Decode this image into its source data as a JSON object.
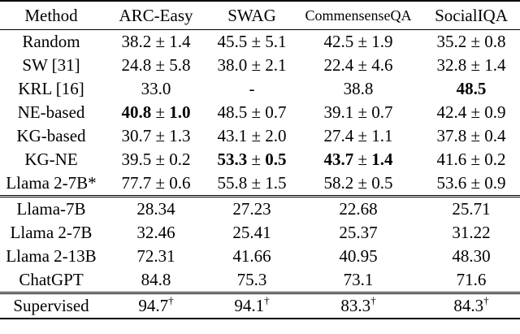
{
  "headers": [
    "Method",
    "ARC-Easy",
    "SWAG",
    "CommensenseQA",
    "SocialIQA"
  ],
  "group1": [
    {
      "method": "Random",
      "cells": [
        {
          "val": "38.2",
          "err": "1.4"
        },
        {
          "val": "45.5",
          "err": "5.1"
        },
        {
          "val": "42.5",
          "err": "1.9"
        },
        {
          "val": "35.2",
          "err": "0.8"
        }
      ]
    },
    {
      "method": "SW [31]",
      "cells": [
        {
          "val": "24.8",
          "err": "5.8"
        },
        {
          "val": "38.0",
          "err": "2.1"
        },
        {
          "val": "22.4",
          "err": "4.6"
        },
        {
          "val": "32.8",
          "err": "1.4"
        }
      ]
    },
    {
      "method": "KRL [16]",
      "cells": [
        {
          "val": "33.0",
          "err": ""
        },
        {
          "val": "-",
          "err": ""
        },
        {
          "val": "38.8",
          "err": ""
        },
        {
          "val": "48.5",
          "err": "",
          "bold": true
        }
      ]
    },
    {
      "method": "NE-based",
      "cells": [
        {
          "val": "40.8",
          "err": "1.0",
          "bold": true
        },
        {
          "val": "48.5",
          "err": "0.7"
        },
        {
          "val": "39.1",
          "err": "0.7"
        },
        {
          "val": "42.4",
          "err": "0.9"
        }
      ]
    },
    {
      "method": "KG-based",
      "cells": [
        {
          "val": "30.7",
          "err": "1.3"
        },
        {
          "val": "43.1",
          "err": "2.0"
        },
        {
          "val": "27.4",
          "err": "1.1"
        },
        {
          "val": "37.8",
          "err": "0.4"
        }
      ]
    },
    {
      "method": "KG-NE",
      "cells": [
        {
          "val": "39.5",
          "err": "0.2"
        },
        {
          "val": "53.3",
          "err": "0.5",
          "bold": true
        },
        {
          "val": "43.7",
          "err": "1.4",
          "bold": true
        },
        {
          "val": "41.6",
          "err": "0.2"
        }
      ]
    },
    {
      "method": "Llama 2-7B*",
      "cells": [
        {
          "val": "77.7",
          "err": "0.6"
        },
        {
          "val": "55.8",
          "err": "1.5"
        },
        {
          "val": "58.2",
          "err": "0.5"
        },
        {
          "val": "53.6",
          "err": "0.9"
        }
      ]
    }
  ],
  "group2": [
    {
      "method": "Llama-7B",
      "cells": [
        "28.34",
        "27.23",
        "22.68",
        "25.71"
      ]
    },
    {
      "method": "Llama 2-7B",
      "cells": [
        "32.46",
        "25.41",
        "25.37",
        "31.22"
      ]
    },
    {
      "method": "Llama 2-13B",
      "cells": [
        "72.31",
        "41.66",
        "40.95",
        "48.30"
      ]
    },
    {
      "method": "ChatGPT",
      "cells": [
        "84.8",
        "75.3",
        "73.1",
        "71.6"
      ]
    }
  ],
  "supervised": {
    "method": "Supervised",
    "cells": [
      "94.7",
      "94.1",
      "83.3",
      "84.3"
    ],
    "mark": "†"
  },
  "pm": "±"
}
